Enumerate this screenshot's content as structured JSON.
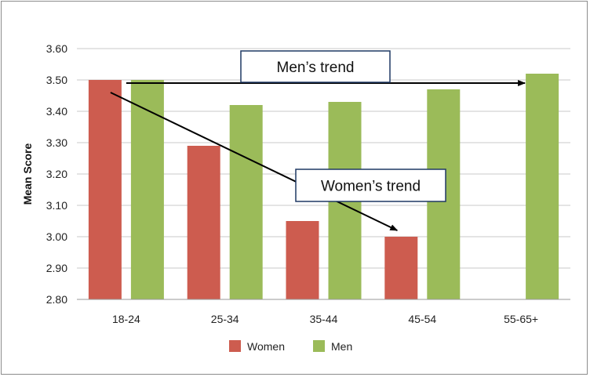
{
  "chart_data": {
    "type": "bar",
    "categories": [
      "18-24",
      "25-34",
      "35-44",
      "45-54",
      "55-65+"
    ],
    "series": [
      {
        "name": "Women",
        "values": [
          3.5,
          3.29,
          3.05,
          3.0,
          null
        ],
        "color": "#cd5c4f"
      },
      {
        "name": "Men",
        "values": [
          3.5,
          3.42,
          3.43,
          3.47,
          3.52
        ],
        "color": "#9bbb59"
      }
    ],
    "ylabel": "Mean Score",
    "xlabel": "",
    "ylim": [
      2.8,
      3.6
    ],
    "yticks": [
      "3.60",
      "3.50",
      "3.40",
      "3.30",
      "3.20",
      "3.10",
      "3.00",
      "2.90",
      "2.80"
    ],
    "grid": true,
    "legend": "bottom",
    "annotations": [
      {
        "text": "Men’s trend",
        "arrow_from": {
          "x": "18-24",
          "y": 3.49
        },
        "arrow_to": {
          "x": "55-65+",
          "y": 3.49
        }
      },
      {
        "text": "Women’s trend",
        "arrow_from": {
          "x": "18-24",
          "y": 3.46
        },
        "arrow_to": {
          "x": "45-54",
          "y": 3.02
        }
      }
    ]
  }
}
